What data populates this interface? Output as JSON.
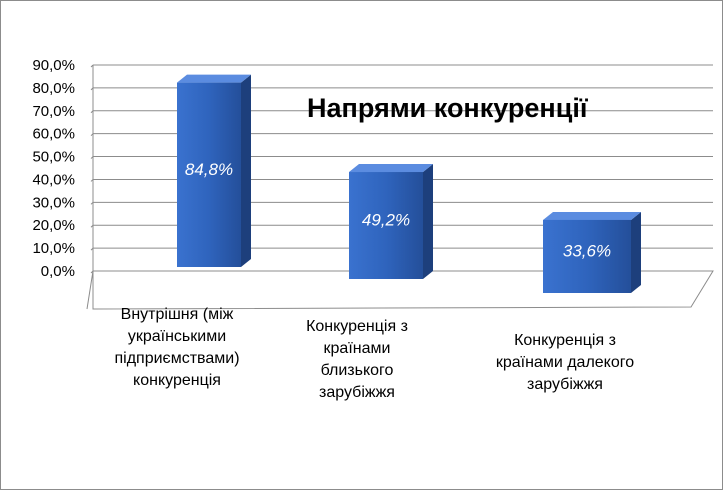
{
  "chart_data": {
    "type": "bar",
    "title": "Напрями конкуренції",
    "categories": [
      "Внутрішня (між українськими підприємствами) конкуренція",
      "Конкуренція з країнами близького зарубіжжя",
      "Конкуренція з країнами далекого зарубіжжя"
    ],
    "category_lines": [
      [
        "Внутрішня (між",
        "українськими",
        "підприємствами)",
        "конкуренція"
      ],
      [
        "Конкуренція з",
        "країнами",
        "близького",
        "зарубіжжя"
      ],
      [
        "Конкуренція з",
        "країнами далекого",
        "зарубіжжя"
      ]
    ],
    "values": [
      84.8,
      49.2,
      33.6
    ],
    "value_labels": [
      "84,8%",
      "49,2%",
      "33,6%"
    ],
    "y_ticks": [
      "0,0%",
      "10,0%",
      "20,0%",
      "30,0%",
      "40,0%",
      "50,0%",
      "60,0%",
      "70,0%",
      "80,0%",
      "90,0%"
    ],
    "ylim": [
      0,
      90
    ],
    "grid": true,
    "bar_color": "#2e62b8",
    "bar_side_color": "#1d3f7c",
    "bar_top_color": "#5b8ce0"
  }
}
